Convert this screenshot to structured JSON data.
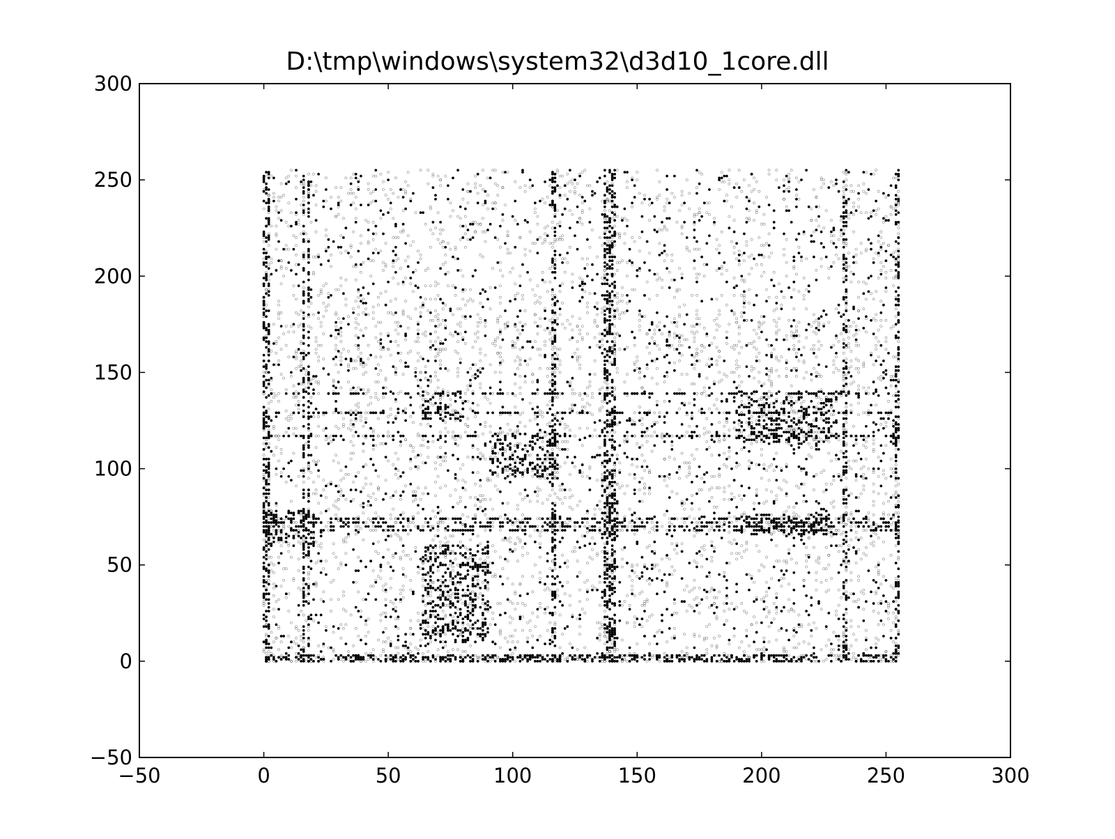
{
  "chart_data": {
    "type": "scatter",
    "title": "D:\\tmp\\windows\\system32\\d3d10_1core.dll",
    "xlabel": "",
    "ylabel": "",
    "xlim": [
      -50,
      300
    ],
    "ylim": [
      -50,
      300
    ],
    "xticks": [
      -50,
      0,
      50,
      100,
      150,
      200,
      250,
      300
    ],
    "yticks": [
      -50,
      0,
      50,
      100,
      150,
      200,
      250,
      300
    ],
    "xtick_labels": [
      "−50",
      "0",
      "50",
      "100",
      "150",
      "200",
      "250",
      "300"
    ],
    "ytick_labels": [
      "−50",
      "0",
      "50",
      "100",
      "150",
      "200",
      "250",
      "300"
    ],
    "grid": false,
    "legend": "none",
    "point_color": "#000000",
    "dense_rows": [
      0,
      1,
      2,
      3,
      68,
      70,
      72,
      74,
      117,
      129,
      139
    ],
    "dense_cols": [
      0,
      1,
      2,
      16,
      18,
      137,
      138,
      139,
      140,
      141,
      116,
      117,
      233,
      234,
      254,
      255
    ],
    "dense_blocks": [
      {
        "x": [
          64,
          80
        ],
        "y": [
          125,
          140
        ]
      },
      {
        "x": [
          92,
          118
        ],
        "y": [
          95,
          118
        ]
      },
      {
        "x": [
          136,
          142
        ],
        "y": [
          62,
          95
        ]
      },
      {
        "x": [
          190,
          230
        ],
        "y": [
          66,
          76
        ]
      },
      {
        "x": [
          64,
          90
        ],
        "y": [
          10,
          60
        ]
      },
      {
        "x": [
          0,
          20
        ],
        "y": [
          60,
          78
        ]
      },
      {
        "x": [
          190,
          230
        ],
        "y": [
          114,
          140
        ]
      }
    ],
    "point_range": {
      "x": [
        0,
        255
      ],
      "y": [
        0,
        255
      ]
    }
  }
}
